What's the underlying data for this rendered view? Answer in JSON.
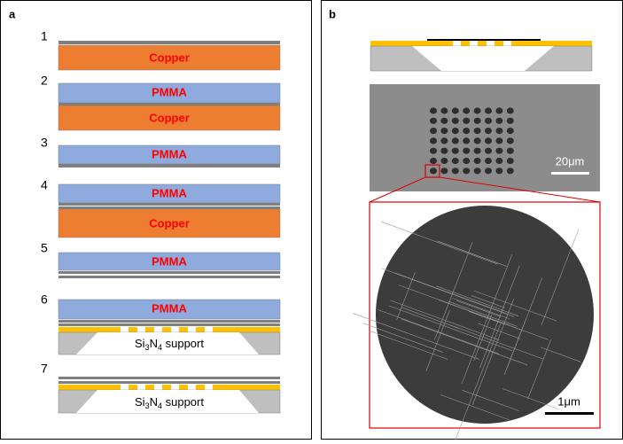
{
  "panel_a": {
    "label": "a",
    "steps": [
      "1",
      "2",
      "3",
      "4",
      "5",
      "6",
      "7"
    ],
    "copper": "Copper",
    "pmma": "PMMA",
    "support": {
      "si": "Si",
      "si_sub": "3",
      "n": "N",
      "n_sub": "4",
      "word": "support"
    }
  },
  "panel_b": {
    "label": "b",
    "scale_bar_top": "20μm",
    "scale_bar_bottom": "1μm"
  }
}
